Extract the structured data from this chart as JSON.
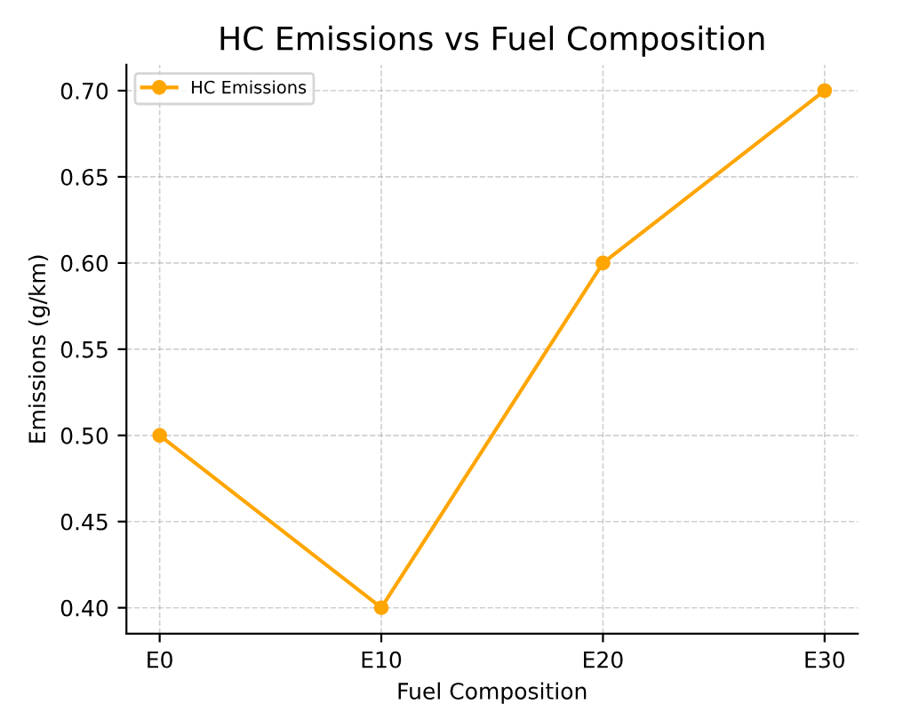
{
  "chart_data": {
    "type": "line",
    "title": "HC Emissions vs Fuel Composition",
    "xlabel": "Fuel Composition",
    "ylabel": "Emissions (g/km)",
    "categories": [
      "E0",
      "E10",
      "E20",
      "E30"
    ],
    "series": [
      {
        "name": "HC Emissions",
        "color": "#ffa500",
        "values": [
          0.5,
          0.4,
          0.6,
          0.7
        ]
      }
    ],
    "ylim": [
      0.385,
      0.715
    ],
    "yticks": [
      {
        "value": 0.4,
        "label": "0.40"
      },
      {
        "value": 0.45,
        "label": "0.45"
      },
      {
        "value": 0.5,
        "label": "0.50"
      },
      {
        "value": 0.55,
        "label": "0.55"
      },
      {
        "value": 0.6,
        "label": "0.60"
      },
      {
        "value": 0.65,
        "label": "0.65"
      },
      {
        "value": 0.7,
        "label": "0.70"
      }
    ],
    "grid": true,
    "legend": "top left",
    "marker": "circle",
    "line_style": "solid"
  }
}
